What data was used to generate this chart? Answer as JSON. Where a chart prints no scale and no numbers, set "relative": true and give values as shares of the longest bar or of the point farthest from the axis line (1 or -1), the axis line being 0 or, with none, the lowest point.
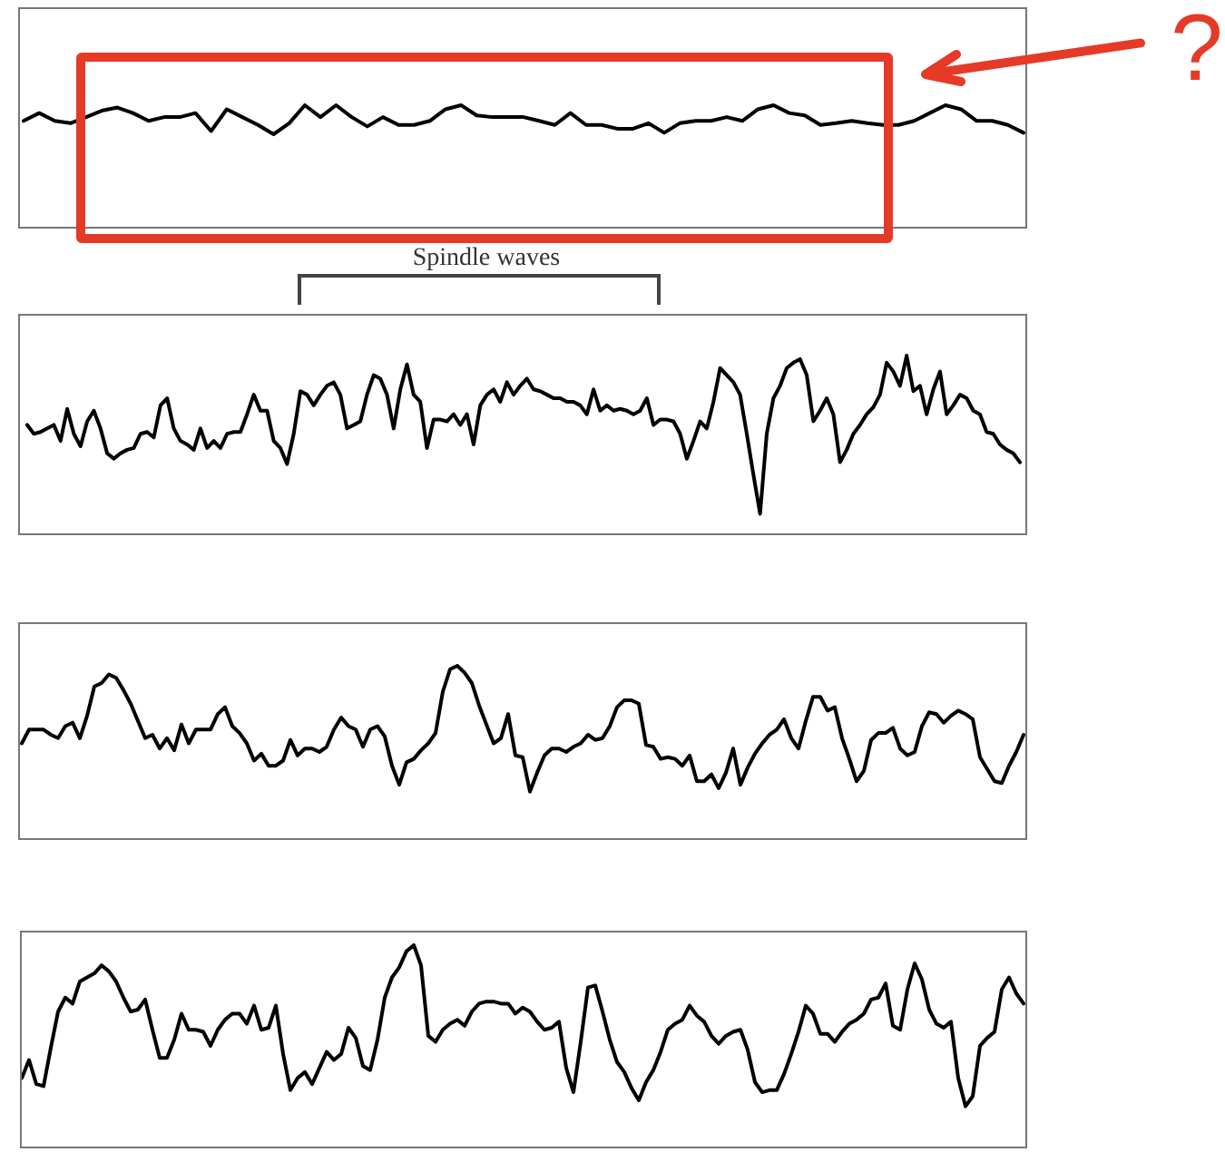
{
  "chart_data": [
    {
      "type": "line",
      "relative": true,
      "color": "#000000",
      "annotations": [
        "?"
      ],
      "categories": [
        null,
        null,
        null,
        null,
        null,
        null,
        null,
        null,
        null,
        null,
        null,
        null,
        null,
        null,
        null,
        null,
        null,
        null,
        null,
        null,
        null,
        null,
        null,
        null,
        null,
        null,
        null,
        null,
        null,
        null,
        null,
        null,
        null,
        null,
        null,
        null,
        null,
        null,
        null,
        null,
        null,
        null,
        null,
        null,
        null,
        null,
        null,
        null,
        null,
        null,
        null,
        null,
        null,
        null,
        null,
        null,
        null,
        null,
        null,
        null,
        null,
        null,
        null,
        null,
        null
      ],
      "values": [
        0.46,
        0.73,
        0.46,
        0.38,
        0.59,
        0.81,
        0.92,
        0.73,
        0.46,
        0.59,
        0.59,
        0.73,
        0.11,
        0.86,
        0.59,
        0.32,
        0,
        0.38,
        1,
        0.59,
        1,
        0.59,
        0.27,
        0.59,
        0.32,
        0.32,
        0.46,
        0.86,
        1,
        0.65,
        0.59,
        0.59,
        0.59,
        0.46,
        0.32,
        0.73,
        0.32,
        0.32,
        0.19,
        0.19,
        0.38,
        0.05,
        0.38,
        0.46,
        0.46,
        0.59,
        0.46,
        0.86,
        1,
        0.73,
        0.65,
        0.32,
        0.38,
        0.46,
        0.38,
        0.32,
        0.32,
        0.46,
        0.73,
        1,
        0.86,
        0.46,
        0.46,
        0.32,
        0.05
      ]
    },
    {
      "type": "line",
      "relative": true,
      "color": "#000000",
      "annotations": [
        "Spindle waves"
      ],
      "categories": [
        null,
        null,
        null,
        null,
        null,
        null,
        null,
        null,
        null,
        null,
        null,
        null,
        null,
        null,
        null,
        null,
        null,
        null,
        null,
        null,
        null,
        null,
        null,
        null,
        null,
        null,
        null,
        null,
        null,
        null,
        null,
        null,
        null,
        null,
        null,
        null,
        null,
        null,
        null,
        null,
        null,
        null,
        null,
        null,
        null,
        null,
        null,
        null,
        null,
        null,
        null,
        null,
        null,
        null,
        null,
        null,
        null,
        null,
        null,
        null,
        null,
        null,
        null,
        null,
        null,
        null,
        null,
        null,
        null,
        null,
        null,
        null,
        null,
        null,
        null,
        null,
        null,
        null,
        null,
        null,
        null,
        null,
        null,
        null,
        null,
        null,
        null,
        null,
        null,
        null,
        null,
        null,
        null,
        null,
        null,
        null,
        null,
        null,
        null,
        null,
        null,
        null,
        null,
        null,
        null,
        null,
        null,
        null,
        null,
        null,
        null,
        null,
        null,
        null,
        null,
        null,
        null,
        null,
        null,
        null,
        null,
        null,
        null,
        null,
        null,
        null,
        null,
        null,
        null,
        null,
        null,
        null,
        null,
        null,
        null,
        null,
        null,
        null,
        null,
        null,
        null,
        null,
        null,
        null,
        null,
        null,
        null,
        null,
        null,
        null
      ],
      "values": [
        0.61,
        0.56,
        0.57,
        0.59,
        0.61,
        0.52,
        0.7,
        0.56,
        0.49,
        0.63,
        0.69,
        0.59,
        0.45,
        0.42,
        0.45,
        0.47,
        0.48,
        0.56,
        0.57,
        0.54,
        0.72,
        0.76,
        0.59,
        0.52,
        0.5,
        0.47,
        0.59,
        0.48,
        0.52,
        0.48,
        0.56,
        0.57,
        0.57,
        0.67,
        0.78,
        0.69,
        0.69,
        0.52,
        0.48,
        0.39,
        0.56,
        0.8,
        0.78,
        0.72,
        0.78,
        0.83,
        0.85,
        0.78,
        0.59,
        0.61,
        0.63,
        0.78,
        0.89,
        0.87,
        0.78,
        0.59,
        0.81,
        0.95,
        0.78,
        0.74,
        0.48,
        0.64,
        0.64,
        0.63,
        0.67,
        0.61,
        0.67,
        0.5,
        0.72,
        0.78,
        0.81,
        0.74,
        0.85,
        0.78,
        0.83,
        0.87,
        0.81,
        0.8,
        0.78,
        0.76,
        0.76,
        0.74,
        0.74,
        0.72,
        0.67,
        0.81,
        0.69,
        0.72,
        0.69,
        0.7,
        0.69,
        0.67,
        0.69,
        0.76,
        0.61,
        0.64,
        0.64,
        0.63,
        0.56,
        0.42,
        0.52,
        0.63,
        0.59,
        0.74,
        0.93,
        0.89,
        0.85,
        0.78,
        0.56,
        0.33,
        0.11,
        0.56,
        0.76,
        0.83,
        0.93,
        0.96,
        0.98,
        0.89,
        0.63,
        0.69,
        0.76,
        0.67,
        0.4,
        0.47,
        0.56,
        0.61,
        0.67,
        0.71,
        0.78,
        0.96,
        0.91,
        0.83,
        1,
        0.8,
        0.83,
        0.67,
        0.81,
        0.91,
        0.67,
        0.72,
        0.78,
        0.76,
        0.69,
        0.67,
        0.57,
        0.56,
        0.5,
        0.47,
        0.45,
        0.4
      ]
    },
    {
      "type": "line",
      "relative": true,
      "color": "#000000",
      "categories": [
        null,
        null,
        null,
        null,
        null,
        null,
        null,
        null,
        null,
        null,
        null,
        null,
        null,
        null,
        null,
        null,
        null,
        null,
        null,
        null,
        null,
        null,
        null,
        null,
        null,
        null,
        null,
        null,
        null,
        null,
        null,
        null,
        null,
        null,
        null,
        null,
        null,
        null,
        null,
        null,
        null,
        null,
        null,
        null,
        null,
        null,
        null,
        null,
        null,
        null,
        null,
        null,
        null,
        null,
        null,
        null,
        null,
        null,
        null,
        null,
        null,
        null,
        null,
        null,
        null,
        null,
        null,
        null,
        null,
        null,
        null,
        null,
        null,
        null,
        null,
        null,
        null,
        null,
        null,
        null,
        null,
        null,
        null,
        null,
        null,
        null,
        null,
        null,
        null,
        null,
        null,
        null,
        null,
        null,
        null,
        null,
        null,
        null,
        null,
        null,
        null,
        null,
        null,
        null,
        null,
        null,
        null,
        null,
        null,
        null,
        null,
        null,
        null,
        null,
        null,
        null,
        null,
        null,
        null,
        null,
        null,
        null,
        null,
        null,
        null,
        null,
        null,
        null,
        null,
        null,
        null,
        null,
        null,
        null,
        null,
        null,
        null,
        null,
        null
      ],
      "values": [
        0.55,
        0.63,
        0.63,
        0.63,
        0.6,
        0.58,
        0.65,
        0.67,
        0.58,
        0.71,
        0.88,
        0.9,
        0.95,
        0.93,
        0.86,
        0.78,
        0.68,
        0.58,
        0.6,
        0.52,
        0.58,
        0.51,
        0.66,
        0.55,
        0.63,
        0.63,
        0.63,
        0.72,
        0.76,
        0.65,
        0.61,
        0.55,
        0.45,
        0.49,
        0.42,
        0.42,
        0.45,
        0.57,
        0.48,
        0.52,
        0.52,
        0.5,
        0.53,
        0.63,
        0.7,
        0.65,
        0.63,
        0.53,
        0.63,
        0.65,
        0.59,
        0.42,
        0.31,
        0.44,
        0.46,
        0.51,
        0.55,
        0.61,
        0.85,
        0.98,
        1,
        0.96,
        0.9,
        0.77,
        0.66,
        0.55,
        0.58,
        0.72,
        0.48,
        0.47,
        0.27,
        0.38,
        0.48,
        0.52,
        0.52,
        0.5,
        0.53,
        0.55,
        0.6,
        0.57,
        0.58,
        0.65,
        0.76,
        0.8,
        0.8,
        0.78,
        0.54,
        0.53,
        0.46,
        0.47,
        0.46,
        0.42,
        0.48,
        0.33,
        0.33,
        0.37,
        0.29,
        0.38,
        0.52,
        0.31,
        0.41,
        0.49,
        0.55,
        0.6,
        0.63,
        0.69,
        0.58,
        0.52,
        0.68,
        0.82,
        0.82,
        0.74,
        0.76,
        0.58,
        0.46,
        0.33,
        0.39,
        0.57,
        0.61,
        0.61,
        0.64,
        0.52,
        0.48,
        0.5,
        0.65,
        0.73,
        0.72,
        0.67,
        0.71,
        0.74,
        0.72,
        0.69,
        0.47,
        0.4,
        0.33,
        0.32,
        0.42,
        0.5,
        0.6
      ]
    },
    {
      "type": "line",
      "relative": true,
      "color": "#000000",
      "categories": [
        null,
        null,
        null,
        null,
        null,
        null,
        null,
        null,
        null,
        null,
        null,
        null,
        null,
        null,
        null,
        null,
        null,
        null,
        null,
        null,
        null,
        null,
        null,
        null,
        null,
        null,
        null,
        null,
        null,
        null,
        null,
        null,
        null,
        null,
        null,
        null,
        null,
        null,
        null,
        null,
        null,
        null,
        null,
        null,
        null,
        null,
        null,
        null,
        null,
        null,
        null,
        null,
        null,
        null,
        null,
        null,
        null,
        null,
        null,
        null,
        null,
        null,
        null,
        null,
        null,
        null,
        null,
        null,
        null,
        null,
        null,
        null,
        null,
        null,
        null,
        null,
        null,
        null,
        null,
        null,
        null,
        null,
        null,
        null,
        null,
        null,
        null,
        null,
        null,
        null,
        null,
        null,
        null,
        null,
        null,
        null,
        null,
        null,
        null,
        null,
        null,
        null,
        null,
        null,
        null,
        null,
        null,
        null,
        null,
        null,
        null,
        null,
        null,
        null,
        null,
        null,
        null,
        null,
        null,
        null,
        null,
        null,
        null,
        null,
        null,
        null,
        null,
        null,
        null,
        null,
        null,
        null,
        null,
        null,
        null,
        null,
        null,
        null,
        null
      ],
      "values": [
        0.34,
        0.43,
        0.31,
        0.3,
        0.49,
        0.67,
        0.74,
        0.71,
        0.82,
        0.84,
        0.86,
        0.9,
        0.87,
        0.82,
        0.74,
        0.67,
        0.68,
        0.73,
        0.58,
        0.44,
        0.44,
        0.53,
        0.66,
        0.58,
        0.58,
        0.57,
        0.5,
        0.58,
        0.63,
        0.66,
        0.66,
        0.61,
        0.7,
        0.58,
        0.59,
        0.7,
        0.46,
        0.28,
        0.34,
        0.37,
        0.31,
        0.39,
        0.47,
        0.43,
        0.46,
        0.59,
        0.54,
        0.4,
        0.38,
        0.53,
        0.74,
        0.84,
        0.89,
        0.97,
        1,
        0.9,
        0.55,
        0.52,
        0.58,
        0.61,
        0.63,
        0.6,
        0.67,
        0.71,
        0.72,
        0.72,
        0.71,
        0.71,
        0.66,
        0.69,
        0.67,
        0.62,
        0.58,
        0.59,
        0.62,
        0.39,
        0.27,
        0.52,
        0.79,
        0.8,
        0.67,
        0.53,
        0.42,
        0.37,
        0.29,
        0.23,
        0.32,
        0.38,
        0.47,
        0.58,
        0.61,
        0.63,
        0.7,
        0.65,
        0.62,
        0.55,
        0.51,
        0.55,
        0.57,
        0.58,
        0.48,
        0.32,
        0.27,
        0.28,
        0.28,
        0.36,
        0.46,
        0.57,
        0.7,
        0.66,
        0.56,
        0.56,
        0.52,
        0.57,
        0.61,
        0.63,
        0.66,
        0.73,
        0.74,
        0.81,
        0.6,
        0.58,
        0.78,
        0.91,
        0.83,
        0.68,
        0.61,
        0.59,
        0.62,
        0.34,
        0.2,
        0.25,
        0.5,
        0.54,
        0.57,
        0.78,
        0.84,
        0.76,
        0.71
      ]
    }
  ]
}
